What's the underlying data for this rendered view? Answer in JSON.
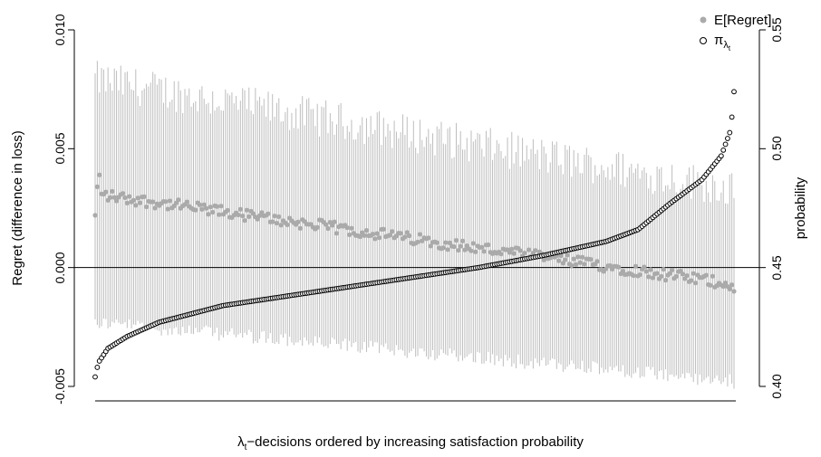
{
  "chart_data": {
    "type": "scatter",
    "title": "",
    "xlabel": "λ_t−decisions ordered by increasing satisfaction probability",
    "xlabel_main": "λ",
    "xlabel_sub": "t",
    "xlabel_rest": "−decisions ordered by increasing satisfaction probability",
    "ylabel": "Regret (difference in loss)",
    "y2label": "probability",
    "ylim": [
      -0.005,
      0.01
    ],
    "y2lim": [
      0.4,
      0.55
    ],
    "yticks": [
      "-0.005",
      "0.000",
      "0.005",
      "0.010"
    ],
    "y2ticks": [
      "0.40",
      "0.45",
      "0.50",
      "0.55"
    ],
    "reference_line_y": 0.0,
    "n_decisions": 300,
    "legend": {
      "position": "top-right",
      "entries": [
        {
          "label": "E[Regret]",
          "marker": "filled-circle",
          "color": "#aaaaaa"
        },
        {
          "label_main": "π",
          "label_sub": "λ",
          "label_subsub": "t",
          "marker": "open-circle",
          "color": "#000000"
        }
      ]
    },
    "series": [
      {
        "name": "E[Regret]",
        "axis": "left",
        "color": "#aaaaaa",
        "trend_start": 0.0031,
        "trend_end": -0.0007,
        "noise": 0.00025,
        "first_value": 0.0022,
        "first_points": [
          0.0022,
          0.0034,
          0.0039,
          0.0031
        ],
        "last_point": -0.001,
        "error_bar_upper_start": 0.0076,
        "error_bar_upper_end": 0.003,
        "error_bar_lower_start": -0.002,
        "error_bar_lower_end": -0.0045
      },
      {
        "name": "π_λt",
        "axis": "right",
        "color": "#000000",
        "quantiles": [
          [
            0.0,
            0.404
          ],
          [
            0.005,
            0.41
          ],
          [
            0.02,
            0.416
          ],
          [
            0.05,
            0.421
          ],
          [
            0.1,
            0.427
          ],
          [
            0.2,
            0.434
          ],
          [
            0.3,
            0.438
          ],
          [
            0.4,
            0.442
          ],
          [
            0.5,
            0.446
          ],
          [
            0.6,
            0.45
          ],
          [
            0.7,
            0.455
          ],
          [
            0.8,
            0.461
          ],
          [
            0.85,
            0.466
          ],
          [
            0.9,
            0.477
          ],
          [
            0.95,
            0.487
          ],
          [
            0.98,
            0.497
          ],
          [
            0.995,
            0.508
          ],
          [
            1.0,
            0.524
          ]
        ]
      }
    ]
  }
}
